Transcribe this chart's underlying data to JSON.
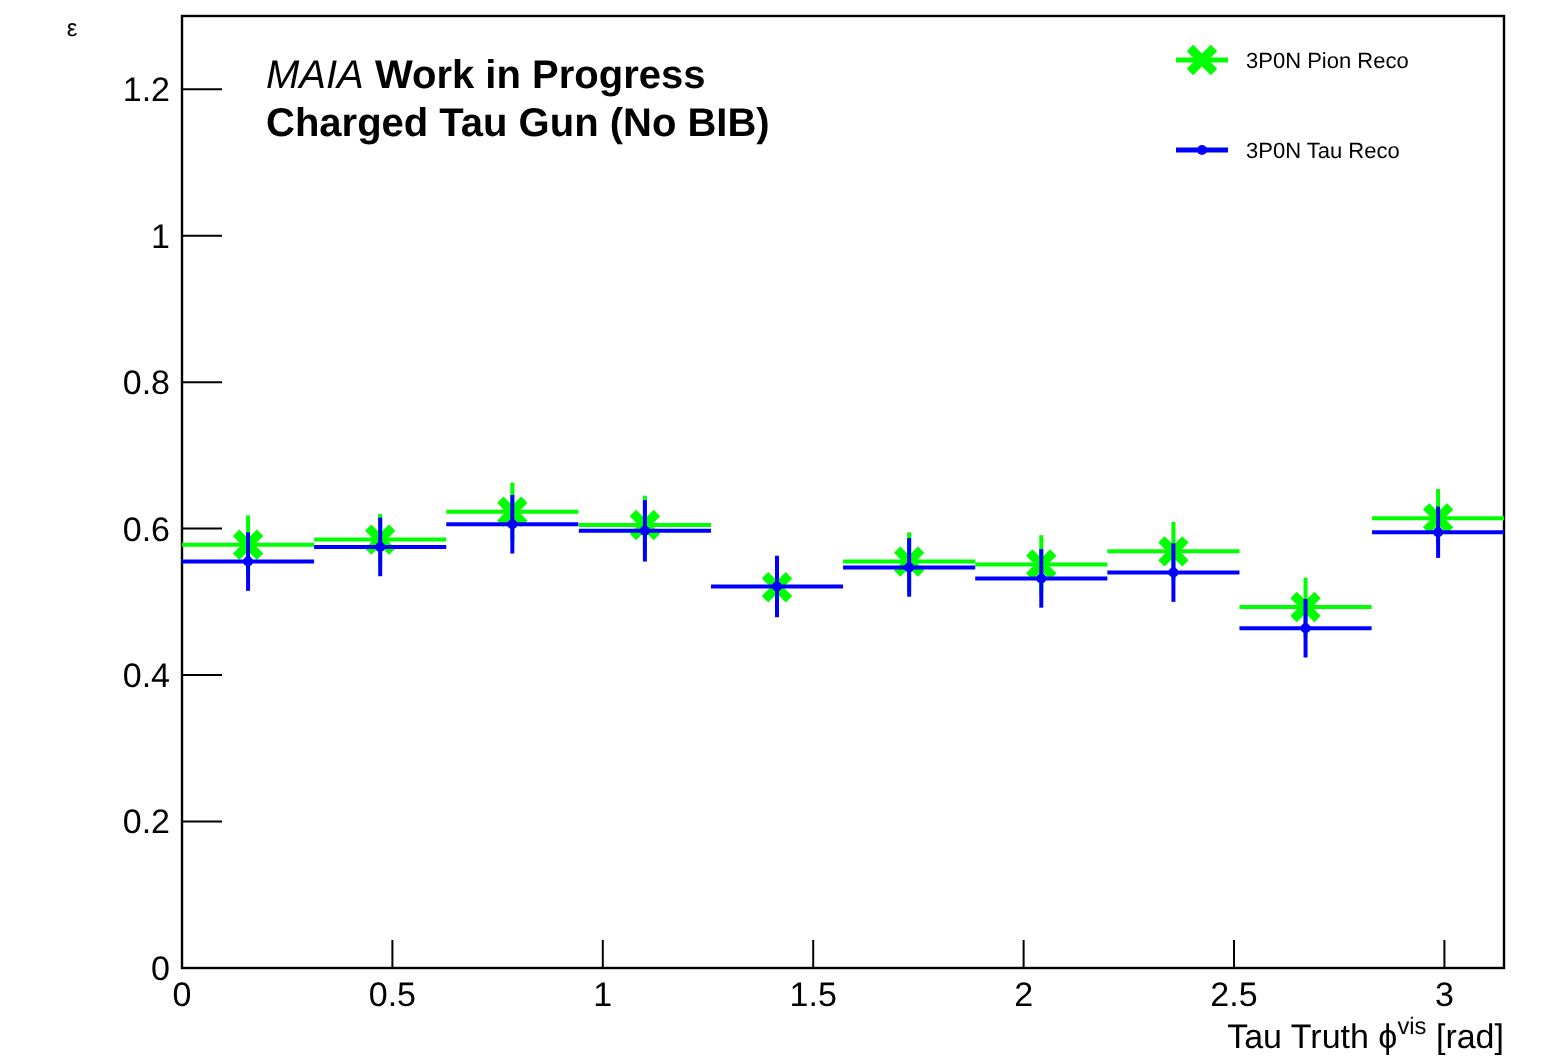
{
  "chart_data": {
    "type": "scatter",
    "title": "MAIA Work in Progress",
    "subtitle": "Charged Tau Gun (No BIB)",
    "xlabel": "Tau Truth ϕ$^{vis}$ [rad]",
    "ylabel": "ε",
    "x": [
      0.157,
      0.471,
      0.785,
      1.1,
      1.414,
      1.728,
      2.042,
      2.356,
      2.67,
      2.985
    ],
    "series": [
      {
        "name": "3P0N Pion Reco",
        "color": "#00ff00",
        "marker": "cross",
        "values": [
          0.578,
          0.585,
          0.623,
          0.605,
          0.52,
          0.555,
          0.551,
          0.569,
          0.493,
          0.614
        ],
        "errors": [
          0.04,
          0.035,
          0.04,
          0.04,
          null,
          0.04,
          0.04,
          0.04,
          0.04,
          0.04
        ],
        "xerrors": [
          0.157,
          0.157,
          0.157,
          0.157,
          null,
          0.157,
          0.157,
          0.157,
          0.157,
          0.157
        ]
      },
      {
        "name": "3P0N Tau Reco",
        "color": "#0000ff",
        "marker": "circle",
        "values": [
          0.555,
          0.575,
          0.606,
          0.597,
          0.521,
          0.547,
          0.532,
          0.54,
          0.464,
          0.595
        ],
        "errors": [
          0.04,
          0.04,
          0.04,
          0.042,
          0.042,
          0.04,
          0.04,
          0.04,
          0.04,
          0.035
        ],
        "xerrors": [
          0.157,
          0.157,
          0.157,
          0.157,
          0.157,
          0.157,
          0.157,
          0.157,
          0.157,
          0.157
        ]
      }
    ],
    "xlim": [
      0,
      3.1416
    ],
    "xticks": [
      0,
      0.5,
      1,
      1.5,
      2,
      2.5,
      3
    ],
    "ylim": [
      0,
      1.3
    ],
    "yticks": [
      0,
      0.2,
      0.4,
      0.6,
      0.8,
      1,
      1.2
    ],
    "legend": "top right",
    "grid": false
  }
}
